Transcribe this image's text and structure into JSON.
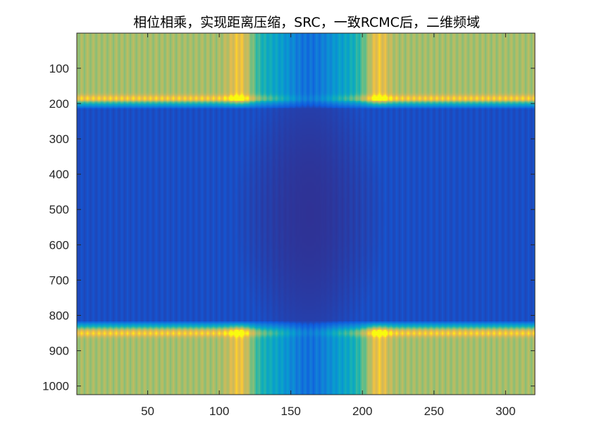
{
  "chart_data": {
    "type": "heatmap",
    "title": "相位相乘，实现距离压缩，SRC，一致RCMC后，二维频域",
    "xlabel": "",
    "ylabel": "",
    "xlim": [
      0.5,
      320.5
    ],
    "ylim": [
      0.5,
      1024.5
    ],
    "y_reversed": true,
    "x_ticks": [
      50,
      100,
      150,
      200,
      250,
      300
    ],
    "x_tick_labels": [
      "50",
      "100",
      "150",
      "200",
      "250",
      "300"
    ],
    "y_ticks": [
      100,
      200,
      300,
      400,
      500,
      600,
      700,
      800,
      900,
      1000
    ],
    "y_tick_labels": [
      "100",
      "200",
      "300",
      "400",
      "500",
      "600",
      "700",
      "800",
      "900",
      "1000"
    ],
    "colormap": "parula",
    "grid": false,
    "pattern": {
      "bright_rows": [
        [
          1,
          200
        ],
        [
          830,
          1024
        ]
      ],
      "row_peaks": [
        185,
        850
      ],
      "column_peaks": [
        115,
        210
      ],
      "column_trough_center": 163,
      "dark_ellipse_center": [
        163,
        512
      ],
      "dark_ellipse_radius": [
        45,
        330
      ],
      "column_ripple_period": 4
    }
  },
  "colors": {
    "low": "#352a87",
    "mid": "#1fa9e4",
    "high": "#f9fb0e",
    "axis": "#262626",
    "background": "#ffffff"
  }
}
